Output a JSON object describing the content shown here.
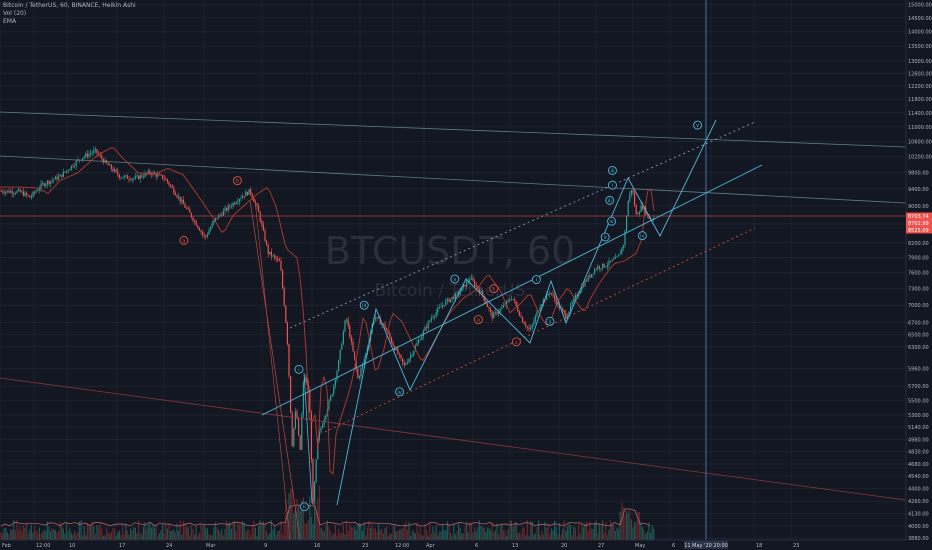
{
  "legend": {
    "symbol_line": "Bitcoin / TetherUS, 60, BINANCE, Heikin Ashi",
    "vol_line": "Vol (20)",
    "ema_line": "EMA"
  },
  "watermark": {
    "main": "BTCUSDT, 60",
    "sub": "Bitcoin / TetherUS"
  },
  "colors": {
    "background": "#131722",
    "grid": "#1e222d",
    "bull": "#26a69a",
    "bear": "#ef5350",
    "wave_blue": "#4fb8d9",
    "wave_red": "#e0533f",
    "price_box": "#ef5350",
    "time_box": "#2a3448",
    "ema": "#b23a2f"
  },
  "chart_data": {
    "type": "candlestick",
    "y_axis_scale": "log",
    "ylim": [
      3880,
      15000
    ],
    "y_ticks": [
      15000,
      14500,
      14000,
      13500,
      13000,
      12600,
      12200,
      11800,
      11400,
      11000,
      10600,
      10200,
      9800,
      9400,
      9000,
      8600,
      8200,
      7900,
      7600,
      7300,
      7000,
      6700,
      6500,
      6300,
      5960,
      5700,
      5500,
      5300,
      5140,
      4980,
      4830,
      4680,
      4540,
      4400,
      4260,
      4130,
      4000,
      3880
    ],
    "x_ticks": [
      "Feb",
      "12:00",
      "10",
      "17",
      "24",
      "Mar",
      "9",
      "16",
      "23",
      "12:00",
      "Apr",
      "6",
      "13",
      "20",
      "27",
      "May",
      "6",
      "11",
      "18",
      "23"
    ],
    "price_labels": [
      "8703.74",
      "8702.99",
      "8525.09"
    ],
    "crosshair_time_label": "11 May '20  20:00",
    "waves": [
      {
        "label": "a",
        "t": 0.203,
        "price": 8250,
        "color": "red"
      },
      {
        "label": "b",
        "t": 0.262,
        "price": 9600,
        "color": "red"
      },
      {
        "label": "i",
        "t": 0.33,
        "price": 5950,
        "color": "blue"
      },
      {
        "label": "ii",
        "t": 0.336,
        "price": 4200,
        "color": "blue"
      },
      {
        "label": "iii",
        "t": 0.402,
        "price": 7000,
        "color": "blue"
      },
      {
        "label": "iv",
        "t": 0.441,
        "price": 5620,
        "color": "blue"
      },
      {
        "label": "v",
        "t": 0.502,
        "price": 7480,
        "color": "blue"
      },
      {
        "label": "a",
        "t": 0.528,
        "price": 6750,
        "color": "red"
      },
      {
        "label": "b",
        "t": 0.545,
        "price": 7300,
        "color": "red"
      },
      {
        "label": "c",
        "t": 0.57,
        "price": 6380,
        "color": "red"
      },
      {
        "label": "i",
        "t": 0.592,
        "price": 7470,
        "color": "blue"
      },
      {
        "label": "ii",
        "t": 0.607,
        "price": 6720,
        "color": "blue"
      },
      {
        "label": "iii",
        "t": 0.676,
        "price": 9850,
        "color": "blue"
      },
      {
        "label": "i",
        "t": 0.676,
        "price": 9490,
        "color": "blue"
      },
      {
        "label": "ii",
        "t": 0.668,
        "price": 8320,
        "color": "blue"
      },
      {
        "label": "iii",
        "t": 0.673,
        "price": 9130,
        "color": "blue"
      },
      {
        "label": "iv",
        "t": 0.675,
        "price": 8660,
        "color": "blue"
      },
      {
        "label": "iv",
        "t": 0.709,
        "price": 8350,
        "color": "blue"
      },
      {
        "label": "v",
        "t": 0.77,
        "price": 11050,
        "color": "blue"
      }
    ]
  }
}
